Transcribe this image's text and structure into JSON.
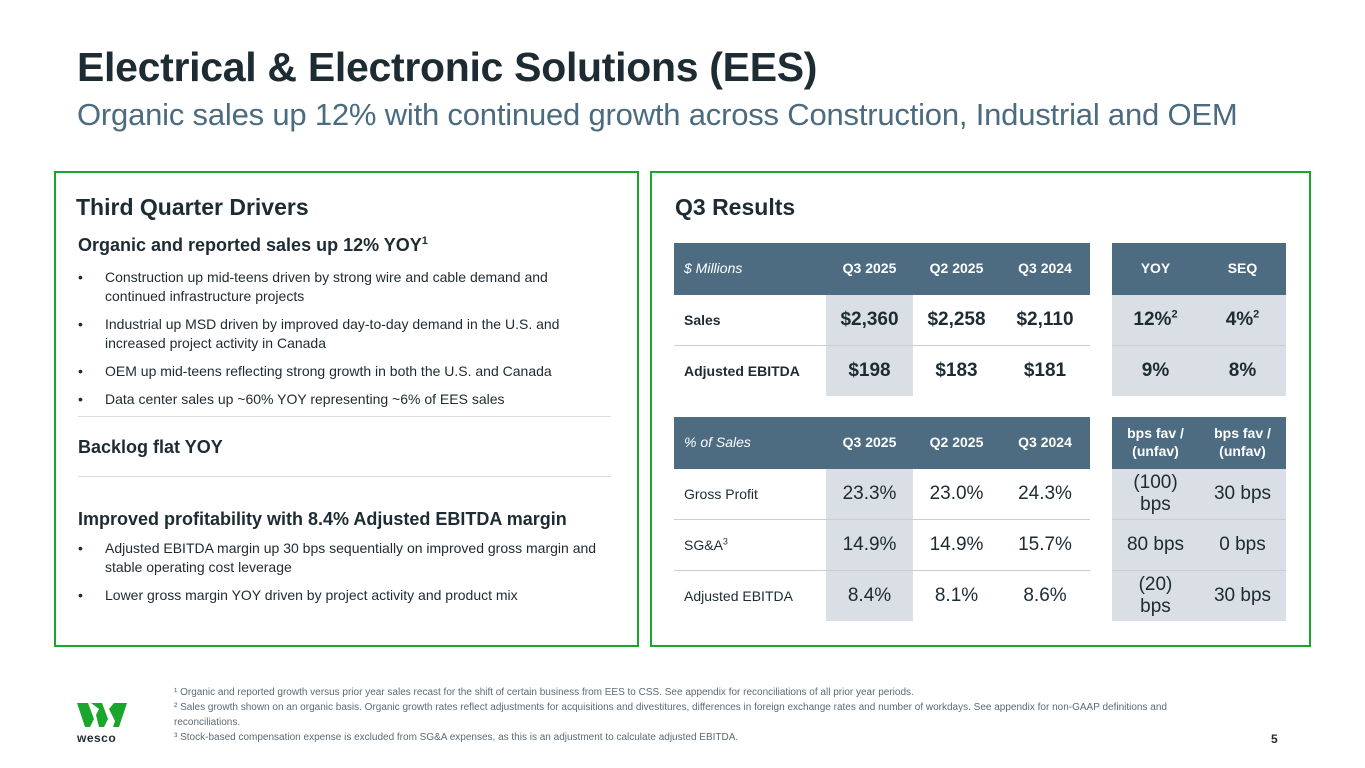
{
  "slide": {
    "title": "Electrical & Electronic Solutions (EES)",
    "subtitle": "Organic sales up 12% with continued growth across Construction, Industrial and OEM",
    "page_number": "5"
  },
  "left_panel": {
    "heading": "Third Quarter Drivers",
    "section1": {
      "heading": "Organic and reported sales up 12% YOY",
      "heading_sup": "1",
      "bullets": [
        "Construction up mid-teens driven by strong wire and cable demand and continued infrastructure projects",
        "Industrial up MSD driven by improved day-to-day demand in the U.S. and increased project activity in Canada",
        "OEM up mid-teens reflecting strong growth in both the U.S. and Canada",
        "Data center sales up ~60% YOY representing ~6% of EES sales"
      ]
    },
    "section2": {
      "heading": "Backlog flat YOY"
    },
    "section3": {
      "heading": "Improved profitability with 8.4% Adjusted EBITDA margin",
      "bullets": [
        "Adjusted EBITDA margin up 30 bps sequentially on improved gross margin and stable operating cost leverage",
        "Lower gross margin YOY driven by project activity and product mix"
      ]
    },
    "bullet_glyph": "•"
  },
  "right_panel": {
    "heading": "Q3 Results",
    "table1": {
      "headers": [
        "$ Millions",
        "Q3 2025",
        "Q2 2025",
        "Q3 2024"
      ],
      "side_headers": [
        "YOY",
        "SEQ"
      ],
      "rows": [
        {
          "label": "Sales",
          "values": [
            "$2,360",
            "$2,258",
            "$2,110"
          ],
          "side": [
            "12%",
            "4%"
          ],
          "side_sup": [
            "2",
            "2"
          ]
        },
        {
          "label": "Adjusted EBITDA",
          "values": [
            "$198",
            "$183",
            "$181"
          ],
          "side": [
            "9%",
            "8%"
          ],
          "side_sup": [
            "",
            ""
          ]
        }
      ]
    },
    "table2": {
      "headers": [
        "% of Sales",
        "Q3 2025",
        "Q2 2025",
        "Q3 2024"
      ],
      "side_headers": [
        "bps fav / (unfav)",
        "bps fav / (unfav)"
      ],
      "rows": [
        {
          "label": "Gross Profit",
          "label_sup": "",
          "values": [
            "23.3%",
            "23.0%",
            "24.3%"
          ],
          "side": [
            "(100) bps",
            "30 bps"
          ]
        },
        {
          "label": "SG&A",
          "label_sup": "3",
          "values": [
            "14.9%",
            "14.9%",
            "15.7%"
          ],
          "side": [
            "80 bps",
            "0 bps"
          ]
        },
        {
          "label": "Adjusted EBITDA",
          "label_sup": "",
          "values": [
            "8.4%",
            "8.1%",
            "8.6%"
          ],
          "side": [
            "(20) bps",
            "30 bps"
          ]
        }
      ]
    }
  },
  "footnotes": [
    "¹ Organic and reported growth versus prior year sales recast for the shift of certain business from EES to CSS. See appendix for reconciliations of all prior year periods.",
    "² Sales growth shown on an organic basis.  Organic growth rates reflect adjustments for acquisitions and divestitures, differences in foreign exchange rates and number of workdays. See appendix for non-GAAP definitions and reconciliations.",
    "³ Stock-based compensation expense is excluded from SG&A expenses, as this is an adjustment to calculate adjusted EBITDA."
  ],
  "logo": {
    "text": "wesco",
    "icon": "wesco-logo-icon"
  },
  "colors": {
    "panel_border": "#1aa52c",
    "table_header": "#4d6c81",
    "table_shade": "#d9dfe4",
    "subtitle": "#4b6b80",
    "logo_green": "#1aa52c"
  }
}
